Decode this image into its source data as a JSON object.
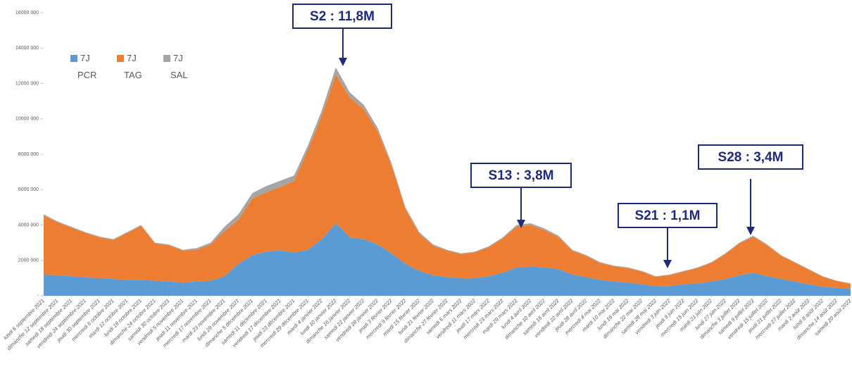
{
  "chart_data": {
    "type": "stacked_area",
    "categories": [
      "lundi 6 septembre 2021",
      "dimanche 12 septembre 2021",
      "samedi 18 septembre 2021",
      "vendredi 24 septembre 2021",
      "jeudi 30 septembre 2021",
      "mercredi 6 octobre 2021",
      "mardi 12 octobre 2021",
      "lundi 18 octobre 2021",
      "dimanche 24 octobre 2021",
      "samedi 30 octobre 2021",
      "vendredi 5 novembre 2021",
      "jeudi 11 novembre 2021",
      "mercredi 17 novembre 2021",
      "mardi 23 novembre 2021",
      "lundi 29 novembre 2021",
      "dimanche 5 décembre 2021",
      "samedi 11 décembre 2021",
      "vendredi 17 décembre 2021",
      "jeudi 23 décembre 2021",
      "mercredi 29 décembre 2021",
      "mardi 4 janvier 2022",
      "lundi 10 janvier 2022",
      "dimanche 16 janvier 2022",
      "samedi 22 janvier 2022",
      "vendredi 28 janvier 2022",
      "jeudi 3 février 2022",
      "mercredi 9 février 2022",
      "mardi 15 février 2022",
      "lundi 21 février 2022",
      "dimanche 27 février 2022",
      "samedi 5 mars 2022",
      "vendredi 11 mars 2022",
      "jeudi 17 mars 2022",
      "mercredi 23 mars 2022",
      "mardi 29 mars 2022",
      "lundi 4 avril 2022",
      "dimanche 10 avril 2022",
      "samedi 16 avril 2022",
      "vendredi 22 avril 2022",
      "jeudi 28 avril 2022",
      "mercredi 4 mai 2022",
      "mardi 10 mai 2022",
      "lundi 16 mai 2022",
      "dimanche 22 mai 2022",
      "samedi 28 mai 2022",
      "vendredi 3 juin 2022",
      "jeudi 9 juin 2022",
      "mercredi 15 juin 2022",
      "mardi 21 juin 2022",
      "lundi 27 juin 2022",
      "dimanche 3 juillet 2022",
      "samedi 9 juillet 2022",
      "vendredi 15 juillet 2022",
      "jeudi 21 juillet 2022",
      "mercredi 27 juillet 2022",
      "mardi 2 août 2022",
      "lundi 8 août 2022",
      "dimanche 14 août 2022",
      "samedi 20 août 2022"
    ],
    "series": [
      {
        "name": "7J PCR",
        "color": "#5b9bd5",
        "values": [
          1200000,
          1150000,
          1100000,
          1050000,
          1000000,
          950000,
          900000,
          900000,
          850000,
          800000,
          750000,
          800000,
          850000,
          1100000,
          1800000,
          2300000,
          2500000,
          2550000,
          2450000,
          2600000,
          3200000,
          4100000,
          3300000,
          3200000,
          2900000,
          2400000,
          1800000,
          1400000,
          1150000,
          1050000,
          1000000,
          1000000,
          1100000,
          1300000,
          1600000,
          1650000,
          1600000,
          1500000,
          1200000,
          1050000,
          900000,
          800000,
          750000,
          650000,
          550000,
          550000,
          650000,
          700000,
          800000,
          950000,
          1150000,
          1300000,
          1100000,
          950000,
          800000,
          650000,
          500000,
          450000,
          400000
        ]
      },
      {
        "name": "7J TAG",
        "color": "#ed7d31",
        "values": [
          3350000,
          3000000,
          2750000,
          2500000,
          2300000,
          2200000,
          2650000,
          3050000,
          2100000,
          2050000,
          1800000,
          1800000,
          2050000,
          2550000,
          2500000,
          3200000,
          3350000,
          3600000,
          4050000,
          5650000,
          7000000,
          8400000,
          7900000,
          7350000,
          6400000,
          4950000,
          3100000,
          2100000,
          1670000,
          1490000,
          1350000,
          1450000,
          1650000,
          1940000,
          2320000,
          2350000,
          2100000,
          1820000,
          1340000,
          1200000,
          950000,
          860000,
          810000,
          720000,
          520000,
          620000,
          720000,
          870000,
          1070000,
          1410000,
          1800000,
          2040000,
          1750000,
          1310000,
          1070000,
          820000,
          580000,
          380000,
          280000
        ]
      },
      {
        "name": "7J SAL",
        "color": "#a5a5a5",
        "values": [
          50000,
          50000,
          50000,
          50000,
          50000,
          50000,
          50000,
          50000,
          50000,
          50000,
          50000,
          100000,
          100000,
          250000,
          300000,
          300000,
          350000,
          350000,
          300000,
          250000,
          300000,
          400000,
          300000,
          250000,
          200000,
          150000,
          100000,
          100000,
          80000,
          60000,
          50000,
          50000,
          50000,
          60000,
          80000,
          100000,
          100000,
          80000,
          60000,
          50000,
          50000,
          40000,
          40000,
          30000,
          30000,
          30000,
          30000,
          30000,
          30000,
          40000,
          50000,
          60000,
          50000,
          40000,
          30000,
          30000,
          20000,
          20000,
          20000
        ]
      }
    ],
    "ylim": [
      0,
      16000000
    ],
    "yticks": [
      {
        "value": 0,
        "label": "-"
      },
      {
        "value": 2000000,
        "label": "2000 000"
      },
      {
        "value": 4000000,
        "label": "4000 000"
      },
      {
        "value": 6000000,
        "label": "6000 000"
      },
      {
        "value": 8000000,
        "label": "8000 000"
      },
      {
        "value": 10000000,
        "label": "10000 000"
      },
      {
        "value": 12000000,
        "label": "12000 000"
      },
      {
        "value": 14000000,
        "label": "14000 000"
      },
      {
        "value": 16000000,
        "label": "16000 000"
      }
    ],
    "annotations": [
      "S2 : 11,8M",
      "S13 : 3,8M",
      "S21 : 1,1M",
      "S28 : 3,4M"
    ]
  }
}
